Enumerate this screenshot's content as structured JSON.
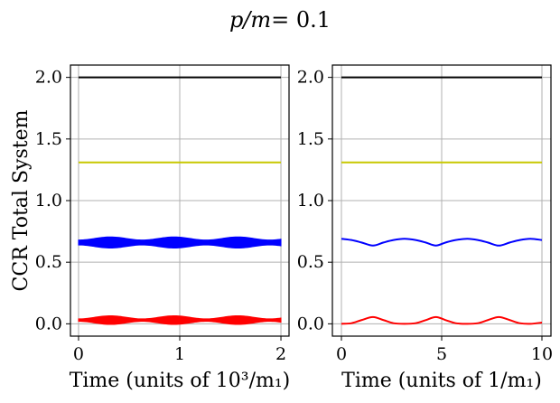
{
  "figure": {
    "suptitle_italic": "p/m",
    "suptitle_value": "= 0.1"
  },
  "chart_data": [
    {
      "type": "line",
      "panel": "left",
      "xlabel": "Time (units of 10³/m₁)",
      "ylabel": "CCR Total System",
      "xlim": [
        -0.08,
        2.08
      ],
      "ylim": [
        -0.1,
        2.1
      ],
      "xticks": [
        0,
        1,
        2
      ],
      "xtick_labels": [
        "0",
        "1",
        "2"
      ],
      "yticks": [
        0.0,
        0.5,
        1.0,
        1.5,
        2.0
      ],
      "ytick_labels": [
        "0.0",
        "0.5",
        "1.0",
        "1.5",
        "2.0"
      ],
      "grid": true,
      "series": [
        {
          "color": "#000000",
          "style": "line",
          "x": [
            0,
            2
          ],
          "values": [
            2.0,
            2.0
          ]
        },
        {
          "color": "#c8c800",
          "style": "line",
          "x": [
            0,
            2
          ],
          "values": [
            1.31,
            1.31
          ]
        },
        {
          "color": "#0000ff",
          "style": "band",
          "x": [
            0,
            2
          ],
          "center": 0.66,
          "min_half_width": 0.02,
          "max_half_width": 0.045,
          "envelope_period": 0.63
        },
        {
          "color": "#ff0000",
          "style": "band",
          "x": [
            0,
            2
          ],
          "center": 0.03,
          "min_half_width": 0.01,
          "max_half_width": 0.035,
          "envelope_period": 0.63
        }
      ]
    },
    {
      "type": "line",
      "panel": "right",
      "xlabel": "Time (units of 1/m₁)",
      "ylabel": "",
      "xlim": [
        -0.45,
        10.45
      ],
      "ylim": [
        -0.1,
        2.1
      ],
      "xticks": [
        0,
        5,
        10
      ],
      "xtick_labels": [
        "0",
        "5",
        "10"
      ],
      "yticks": [
        0.0,
        0.5,
        1.0,
        1.5,
        2.0
      ],
      "ytick_labels": [
        "0.0",
        "0.5",
        "1.0",
        "1.5",
        "2.0"
      ],
      "grid": true,
      "series": [
        {
          "color": "#000000",
          "style": "line",
          "x": [
            0,
            10
          ],
          "values": [
            2.0,
            2.0
          ]
        },
        {
          "color": "#c8c800",
          "style": "line",
          "x": [
            0,
            10
          ],
          "values": [
            1.31,
            1.31
          ]
        },
        {
          "color": "#0000ff",
          "style": "line",
          "x": [
            0,
            0.5,
            1.0,
            1.57,
            2.1,
            2.6,
            3.14,
            3.7,
            4.2,
            4.71,
            5.2,
            5.7,
            6.28,
            6.8,
            7.3,
            7.85,
            8.4,
            8.9,
            9.42,
            10.0
          ],
          "values": [
            0.69,
            0.68,
            0.66,
            0.635,
            0.66,
            0.68,
            0.69,
            0.68,
            0.66,
            0.635,
            0.66,
            0.68,
            0.69,
            0.68,
            0.66,
            0.635,
            0.66,
            0.68,
            0.69,
            0.68
          ]
        },
        {
          "color": "#ff0000",
          "style": "line",
          "x": [
            0,
            0.5,
            1.0,
            1.57,
            2.1,
            2.6,
            3.14,
            3.7,
            4.2,
            4.71,
            5.2,
            5.7,
            6.28,
            6.8,
            7.3,
            7.85,
            8.4,
            8.9,
            9.42,
            10.0
          ],
          "values": [
            0.0,
            0.005,
            0.03,
            0.055,
            0.03,
            0.005,
            0.0,
            0.005,
            0.03,
            0.055,
            0.03,
            0.005,
            0.0,
            0.005,
            0.03,
            0.055,
            0.03,
            0.005,
            0.0,
            0.01
          ]
        }
      ]
    }
  ]
}
